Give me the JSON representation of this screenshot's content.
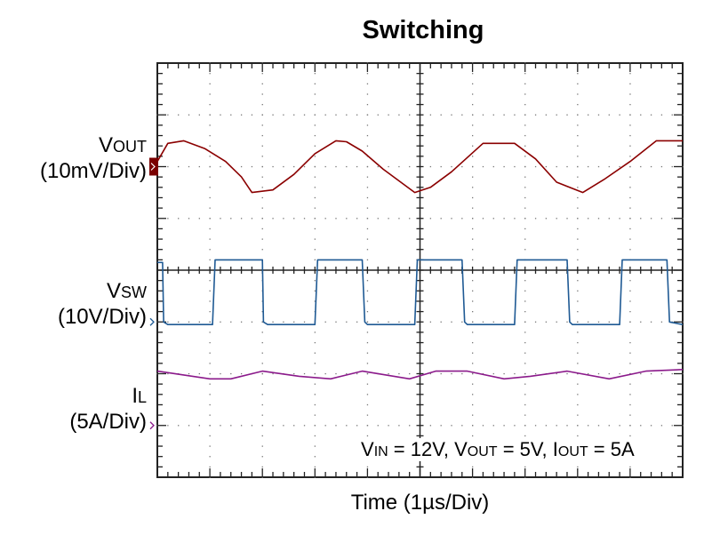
{
  "chart_data": {
    "type": "line",
    "title": "Switching",
    "xlabel": "Time (1µs/Div)",
    "x_divisions": 10,
    "y_divisions": 8,
    "xlim": [
      0,
      10
    ],
    "xunit": "µs",
    "grid": true,
    "annotation": {
      "parts": [
        {
          "main": "V",
          "sub": "IN",
          "rest": " = 12V, "
        },
        {
          "main": "V",
          "sub": "OUT",
          "rest": " = 5V, "
        },
        {
          "main": "I",
          "sub": "OUT",
          "rest": " = 5A"
        }
      ]
    },
    "channels": [
      {
        "name": "VOUT",
        "label_main": "V",
        "label_sub": "OUT",
        "scale": "(10mV/Div)",
        "color": "#8b0000",
        "marker_color": "#7a0000",
        "offset_div": 2.0,
        "units": "div",
        "x": [
          0,
          0.2,
          0.5,
          0.9,
          1.3,
          1.6,
          1.8,
          2.2,
          2.6,
          3.0,
          3.4,
          3.6,
          3.9,
          4.3,
          4.9,
          5.2,
          5.6,
          6.2,
          6.8,
          7.2,
          7.6,
          8.1,
          8.5,
          9.0,
          9.5,
          10.0
        ],
        "y": [
          2.1,
          2.45,
          2.5,
          2.35,
          2.1,
          1.8,
          1.5,
          1.55,
          1.85,
          2.25,
          2.5,
          2.48,
          2.3,
          1.95,
          1.5,
          1.6,
          1.9,
          2.45,
          2.45,
          2.15,
          1.7,
          1.5,
          1.75,
          2.1,
          2.5,
          2.5
        ]
      },
      {
        "name": "VSW",
        "label_main": "V",
        "label_sub": "SW",
        "scale": "(10V/Div)",
        "color": "#1f5a94",
        "marker_color": "#1f5a94",
        "offset_div": -1.0,
        "units": "div",
        "x": [
          0,
          0.1,
          0.12,
          0.2,
          1.0,
          1.05,
          1.1,
          2.0,
          2.02,
          2.1,
          3.0,
          3.05,
          3.1,
          3.9,
          3.95,
          4.0,
          4.9,
          4.95,
          5.0,
          5.8,
          5.85,
          5.9,
          6.8,
          6.85,
          6.9,
          7.8,
          7.85,
          7.9,
          8.8,
          8.85,
          8.9,
          9.7,
          9.75,
          10.0
        ],
        "y": [
          0.15,
          0.15,
          -1.0,
          -1.05,
          -1.05,
          -1.05,
          0.2,
          0.2,
          -1.0,
          -1.05,
          -1.05,
          0.2,
          0.2,
          0.2,
          -1.0,
          -1.05,
          -1.05,
          0.2,
          0.2,
          0.2,
          -1.0,
          -1.05,
          -1.05,
          0.2,
          0.2,
          0.2,
          -1.0,
          -1.05,
          -1.05,
          0.2,
          0.2,
          0.2,
          -1.0,
          -1.05
        ]
      },
      {
        "name": "IL",
        "label_main": "I",
        "label_sub": "L",
        "scale": "(5A/Div)",
        "color": "#8b1a8b",
        "marker_color": "#8b1a8b",
        "offset_div": -3.0,
        "units": "div",
        "x": [
          0,
          1.0,
          1.4,
          2.0,
          2.7,
          3.3,
          3.9,
          4.8,
          5.3,
          5.9,
          6.6,
          7.1,
          7.8,
          8.6,
          9.3,
          10.0
        ],
        "y": [
          -1.95,
          -2.1,
          -2.1,
          -1.95,
          -2.05,
          -2.1,
          -1.95,
          -2.1,
          -1.95,
          -1.95,
          -2.1,
          -2.05,
          -1.95,
          -2.1,
          -1.95,
          -1.92
        ]
      }
    ]
  }
}
